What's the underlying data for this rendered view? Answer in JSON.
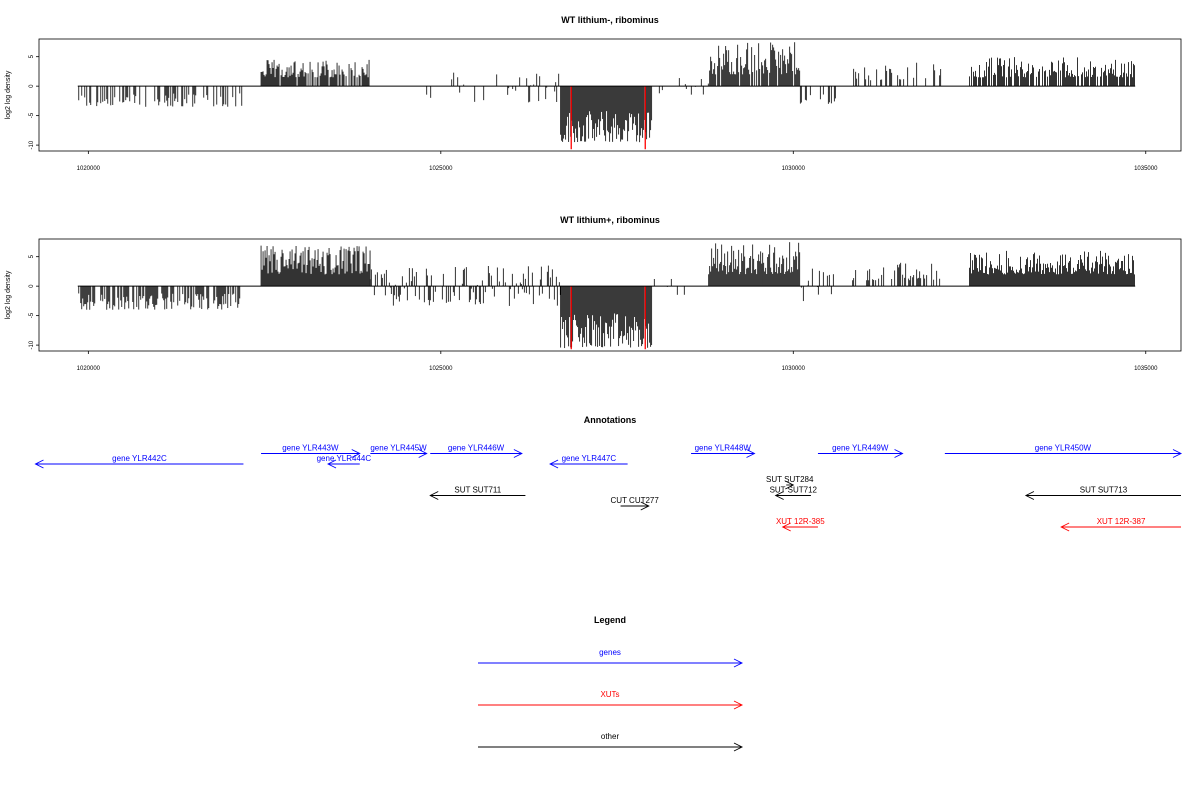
{
  "chart_data": [
    {
      "type": "bar",
      "title": "WT lithium-, ribominus",
      "ylabel": "log2 log density",
      "xlabel": "",
      "xlim": [
        1019300,
        1035500
      ],
      "ylim": [
        -11,
        8
      ],
      "xticks": [
        1020000,
        1025000,
        1030000,
        1035000
      ],
      "xtick_labels": [
        "1020000",
        "1025000",
        "1030000",
        "1035000"
      ],
      "yticks": [
        5,
        0,
        -5,
        -10
      ],
      "ytick_labels": [
        "5",
        "0",
        "-5",
        "-10"
      ],
      "baseline": {
        "x_start": 1019850,
        "x_end": 1034850,
        "y": 0
      },
      "segments": [
        {
          "x_start": 1019850,
          "x_end": 1022200,
          "min": -3.5,
          "max": -1.2,
          "density": 0.4
        },
        {
          "x_start": 1022450,
          "x_end": 1024000,
          "min": 1.5,
          "max": 4.5,
          "density": 0.8
        },
        {
          "x_start": 1024800,
          "x_end": 1026700,
          "min": -3.0,
          "max": 2.5,
          "density": 0.2
        },
        {
          "x_start": 1026700,
          "x_end": 1028000,
          "min": -9.5,
          "max": -4.0,
          "density": 1.0
        },
        {
          "x_start": 1028000,
          "x_end": 1028800,
          "min": -1.5,
          "max": 1.5,
          "density": 0.1
        },
        {
          "x_start": 1028800,
          "x_end": 1030100,
          "min": 2.0,
          "max": 7.5,
          "density": 0.9
        },
        {
          "x_start": 1030100,
          "x_end": 1030600,
          "min": -3.0,
          "max": -1.0,
          "density": 0.4
        },
        {
          "x_start": 1030800,
          "x_end": 1032100,
          "min": 1.0,
          "max": 4.0,
          "density": 0.3
        },
        {
          "x_start": 1032500,
          "x_end": 1034850,
          "min": 1.5,
          "max": 5.0,
          "density": 0.8
        }
      ],
      "highlight_lines": [
        {
          "x": 1026850,
          "y": -10.7,
          "color": "#ff0000"
        },
        {
          "x": 1027900,
          "y": -10.7,
          "color": "#ff0000"
        }
      ]
    },
    {
      "type": "bar",
      "title": "WT lithium+, ribominus",
      "ylabel": "log2 log density",
      "xlabel": "",
      "xlim": [
        1019300,
        1035500
      ],
      "ylim": [
        -11,
        8
      ],
      "xticks": [
        1020000,
        1025000,
        1030000,
        1035000
      ],
      "xtick_labels": [
        "1020000",
        "1025000",
        "1030000",
        "1035000"
      ],
      "yticks": [
        5,
        0,
        -5,
        -10
      ],
      "ytick_labels": [
        "5",
        "0",
        "-5",
        "-10"
      ],
      "baseline": {
        "x_start": 1019850,
        "x_end": 1034850,
        "y": 0
      },
      "segments": [
        {
          "x_start": 1019850,
          "x_end": 1022200,
          "min": -4.0,
          "max": -1.2,
          "density": 0.7
        },
        {
          "x_start": 1022450,
          "x_end": 1024000,
          "min": 2.0,
          "max": 7.0,
          "density": 1.0
        },
        {
          "x_start": 1024000,
          "x_end": 1026700,
          "min": -3.5,
          "max": 3.5,
          "density": 0.5
        },
        {
          "x_start": 1026700,
          "x_end": 1028000,
          "min": -10.5,
          "max": -4.5,
          "density": 1.0
        },
        {
          "x_start": 1028000,
          "x_end": 1028800,
          "min": -1.5,
          "max": 1.5,
          "density": 0.1
        },
        {
          "x_start": 1028800,
          "x_end": 1030100,
          "min": 2.0,
          "max": 7.5,
          "density": 1.0
        },
        {
          "x_start": 1030100,
          "x_end": 1030600,
          "min": -4.0,
          "max": 3.0,
          "density": 0.4
        },
        {
          "x_start": 1030800,
          "x_end": 1032100,
          "min": 1.0,
          "max": 4.0,
          "density": 0.4
        },
        {
          "x_start": 1032500,
          "x_end": 1034850,
          "min": 2.0,
          "max": 6.0,
          "density": 1.0
        }
      ],
      "highlight_lines": [
        {
          "x": 1026850,
          "y": -10.7,
          "color": "#ff0000"
        },
        {
          "x": 1027900,
          "y": -10.7,
          "color": "#ff0000"
        }
      ]
    }
  ],
  "annotations": {
    "title": "Annotations",
    "x_range": [
      1019300,
      1035500
    ],
    "features": [
      {
        "label": "gene YLR442C",
        "x_start": 1019250,
        "x_end": 1022200,
        "strand": "-",
        "row": 2,
        "color": "#0000ff"
      },
      {
        "label": "gene YLR443W",
        "x_start": 1022450,
        "x_end": 1023850,
        "strand": "+",
        "row": 1,
        "color": "#0000ff"
      },
      {
        "label": "gene YLR444C",
        "x_start": 1023400,
        "x_end": 1023850,
        "strand": "-",
        "row": 2,
        "color": "#0000ff"
      },
      {
        "label": "gene YLR445W",
        "x_start": 1024000,
        "x_end": 1024800,
        "strand": "+",
        "row": 1,
        "color": "#0000ff"
      },
      {
        "label": "gene YLR446W",
        "x_start": 1024850,
        "x_end": 1026150,
        "strand": "+",
        "row": 1,
        "color": "#0000ff"
      },
      {
        "label": "gene YLR447C",
        "x_start": 1026550,
        "x_end": 1027650,
        "strand": "-",
        "row": 2,
        "color": "#0000ff"
      },
      {
        "label": "gene YLR448W",
        "x_start": 1028550,
        "x_end": 1029450,
        "strand": "+",
        "row": 1,
        "color": "#0000ff"
      },
      {
        "label": "gene YLR449W",
        "x_start": 1030350,
        "x_end": 1031550,
        "strand": "+",
        "row": 1,
        "color": "#0000ff"
      },
      {
        "label": "gene YLR450W",
        "x_start": 1032150,
        "x_end": 1035500,
        "strand": "+",
        "row": 1,
        "color": "#0000ff"
      },
      {
        "label": "SUT SUT284",
        "x_start": 1029900,
        "x_end": 1030000,
        "strand": "+",
        "row": 4,
        "color": "#000000"
      },
      {
        "label": "SUT SUT711",
        "x_start": 1024850,
        "x_end": 1026200,
        "strand": "-",
        "row": 5,
        "color": "#000000"
      },
      {
        "label": "SUT SUT712",
        "x_start": 1029750,
        "x_end": 1030250,
        "strand": "-",
        "row": 5,
        "color": "#000000"
      },
      {
        "label": "SUT SUT713",
        "x_start": 1033300,
        "x_end": 1035500,
        "strand": "-",
        "row": 5,
        "color": "#000000"
      },
      {
        "label": "CUT CUT277",
        "x_start": 1027550,
        "x_end": 1027950,
        "strand": "+",
        "row": 6,
        "color": "#000000"
      },
      {
        "label": "XUT 12R-385",
        "x_start": 1029850,
        "x_end": 1030350,
        "strand": "-",
        "row": 8,
        "color": "#ff0000"
      },
      {
        "label": "XUT 12R-387",
        "x_start": 1033800,
        "x_end": 1035500,
        "strand": "-",
        "row": 8,
        "color": "#ff0000"
      }
    ]
  },
  "legend": {
    "title": "Legend",
    "items": [
      {
        "label": "genes",
        "color": "#0000ff"
      },
      {
        "label": "XUTs",
        "color": "#ff0000"
      },
      {
        "label": "other",
        "color": "#000000"
      }
    ]
  }
}
